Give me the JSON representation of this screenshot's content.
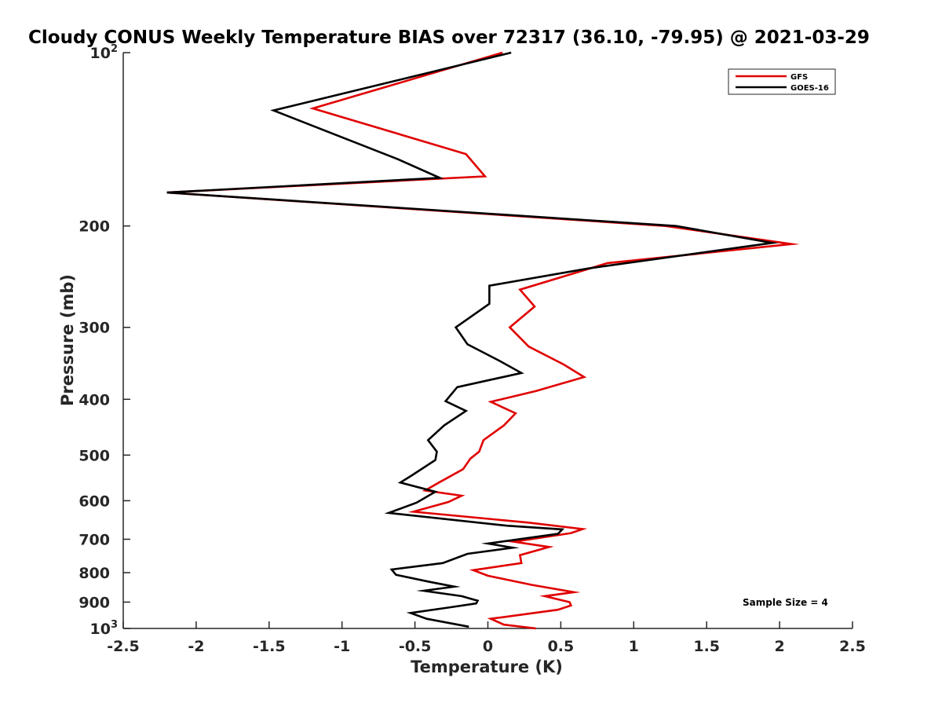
{
  "chart_data": {
    "type": "line",
    "title": "Cloudy CONUS Weekly Temperature BIAS over 72317 (36.10, -79.95) @ 2021-03-29",
    "xlabel": "Temperature (K)",
    "ylabel": "Pressure (mb)",
    "xlim": [
      -2.5,
      2.5
    ],
    "ylim": [
      1000,
      100
    ],
    "y_scale": "log",
    "y_reversed": true,
    "x_ticks": [
      "-2.5",
      "-2",
      "-1.5",
      "-1",
      "-0.5",
      "0",
      "0.5",
      "1",
      "1.5",
      "2",
      "2.5"
    ],
    "y_ticks": [
      {
        "value": 100,
        "base": "10",
        "exp": "2"
      },
      {
        "value": 200,
        "label": "200"
      },
      {
        "value": 300,
        "label": "300"
      },
      {
        "value": 400,
        "label": "400"
      },
      {
        "value": 500,
        "label": "500"
      },
      {
        "value": 600,
        "label": "600"
      },
      {
        "value": 700,
        "label": "700"
      },
      {
        "value": 800,
        "label": "800"
      },
      {
        "value": 900,
        "label": "900"
      },
      {
        "value": 1000,
        "base": "10",
        "exp": "3"
      }
    ],
    "grid": false,
    "legend_position": "top-right",
    "annotation": "Sample Size = 4",
    "series": [
      {
        "name": "GFS",
        "color": "#e00000",
        "points": [
          [
            0.1,
            100
          ],
          [
            -1.2,
            125
          ],
          [
            -0.15,
            150
          ],
          [
            -0.02,
            164
          ],
          [
            -2.2,
            175
          ],
          [
            1.22,
            200
          ],
          [
            2.08,
            215
          ],
          [
            0.82,
            232
          ],
          [
            0.22,
            258
          ],
          [
            0.32,
            276
          ],
          [
            0.15,
            300
          ],
          [
            0.28,
            324
          ],
          [
            0.52,
            348
          ],
          [
            0.66,
            366
          ],
          [
            0.33,
            387
          ],
          [
            0.02,
            404
          ],
          [
            0.19,
            423
          ],
          [
            0.11,
            444
          ],
          [
            -0.03,
            471
          ],
          [
            -0.06,
            493
          ],
          [
            -0.12,
            507
          ],
          [
            -0.17,
            529
          ],
          [
            -0.33,
            557
          ],
          [
            -0.43,
            576
          ],
          [
            -0.18,
            588
          ],
          [
            -0.27,
            603
          ],
          [
            -0.51,
            627
          ],
          [
            0.28,
            655
          ],
          [
            0.65,
            672
          ],
          [
            0.57,
            683
          ],
          [
            0.18,
            707
          ],
          [
            0.42,
            722
          ],
          [
            0.22,
            746
          ],
          [
            0.23,
            770
          ],
          [
            -0.1,
            792
          ],
          [
            0.0,
            810
          ],
          [
            0.3,
            840
          ],
          [
            0.59,
            865
          ],
          [
            0.39,
            879
          ],
          [
            0.56,
            900
          ],
          [
            0.57,
            912
          ],
          [
            0.48,
            928
          ],
          [
            0.02,
            962
          ],
          [
            0.11,
            985
          ],
          [
            0.33,
            1000
          ]
        ]
      },
      {
        "name": "GOES-16",
        "color": "#000000",
        "points": [
          [
            0.16,
            100
          ],
          [
            -1.47,
            126
          ],
          [
            -0.62,
            153
          ],
          [
            -0.33,
            165
          ],
          [
            -2.2,
            175
          ],
          [
            1.29,
            200
          ],
          [
            1.95,
            214
          ],
          [
            0.69,
            237
          ],
          [
            0.01,
            254
          ],
          [
            0.01,
            273
          ],
          [
            -0.22,
            300
          ],
          [
            -0.14,
            321
          ],
          [
            0.08,
            343
          ],
          [
            0.23,
            360
          ],
          [
            -0.21,
            381
          ],
          [
            -0.29,
            403
          ],
          [
            -0.15,
            419
          ],
          [
            -0.3,
            444
          ],
          [
            -0.41,
            471
          ],
          [
            -0.35,
            493
          ],
          [
            -0.36,
            510
          ],
          [
            -0.52,
            542
          ],
          [
            -0.6,
            558
          ],
          [
            -0.36,
            579
          ],
          [
            -0.49,
            605
          ],
          [
            -0.68,
            630
          ],
          [
            0.13,
            663
          ],
          [
            0.51,
            673
          ],
          [
            0.48,
            685
          ],
          [
            0.0,
            712
          ],
          [
            0.17,
            724
          ],
          [
            -0.14,
            742
          ],
          [
            -0.31,
            770
          ],
          [
            -0.66,
            790
          ],
          [
            -0.63,
            807
          ],
          [
            -0.4,
            830
          ],
          [
            -0.23,
            846
          ],
          [
            -0.44,
            860
          ],
          [
            -0.18,
            879
          ],
          [
            -0.07,
            895
          ],
          [
            -0.08,
            905
          ],
          [
            -0.26,
            919
          ],
          [
            -0.53,
            940
          ],
          [
            -0.42,
            962
          ],
          [
            -0.13,
            993
          ]
        ]
      }
    ]
  }
}
